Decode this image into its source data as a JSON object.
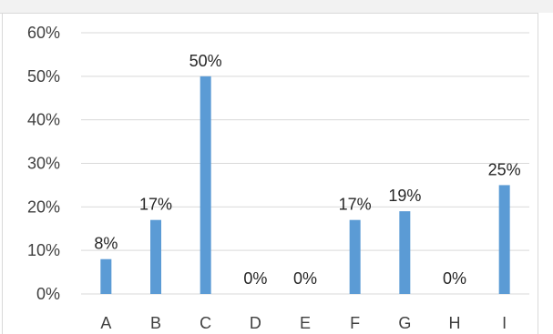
{
  "chart_data": {
    "type": "bar",
    "categories": [
      "A",
      "B",
      "C",
      "D",
      "E",
      "F",
      "G",
      "H",
      "I"
    ],
    "values": [
      8,
      17,
      50,
      0,
      0,
      17,
      19,
      0,
      25
    ],
    "data_labels": [
      "8%",
      "17%",
      "50%",
      "0%",
      "0%",
      "17%",
      "19%",
      "0%",
      "25%"
    ],
    "yticks": [
      "0%",
      "10%",
      "20%",
      "30%",
      "40%",
      "50%",
      "60%"
    ],
    "ylim": [
      0,
      60
    ],
    "grid": true,
    "bar_color": "#5b9bd5",
    "title": "",
    "xlabel": "",
    "ylabel": ""
  }
}
